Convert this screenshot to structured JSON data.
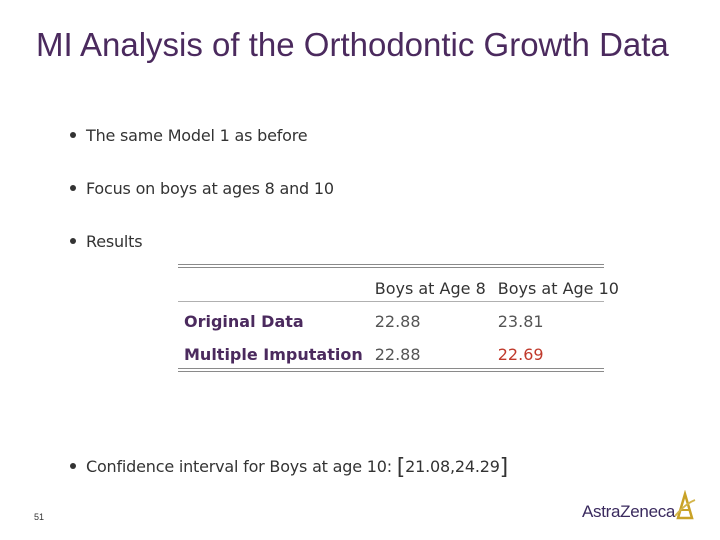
{
  "slide": {
    "title": "MI Analysis of the Orthodontic Growth Data",
    "page_number": "51"
  },
  "bullets": [
    "The same Model 1 as before",
    "Focus on boys at ages 8 and 10",
    "Results",
    "Confidence interval for Boys at age 10:"
  ],
  "table": {
    "headers": [
      "",
      "Boys at Age 8",
      "Boys at Age 10"
    ],
    "rows": [
      {
        "label": "Original Data",
        "age8": "22.88",
        "age10": "23.81"
      },
      {
        "label": "Multiple Imputation",
        "age8": "22.88",
        "age10": "22.69"
      }
    ],
    "highlight_color": "#c0392b"
  },
  "confidence_interval": {
    "open": "[",
    "value": "21.08,24.29",
    "close": "]"
  },
  "logo": {
    "text": "AstraZeneca",
    "icon": "astrazeneca-logo-icon"
  }
}
